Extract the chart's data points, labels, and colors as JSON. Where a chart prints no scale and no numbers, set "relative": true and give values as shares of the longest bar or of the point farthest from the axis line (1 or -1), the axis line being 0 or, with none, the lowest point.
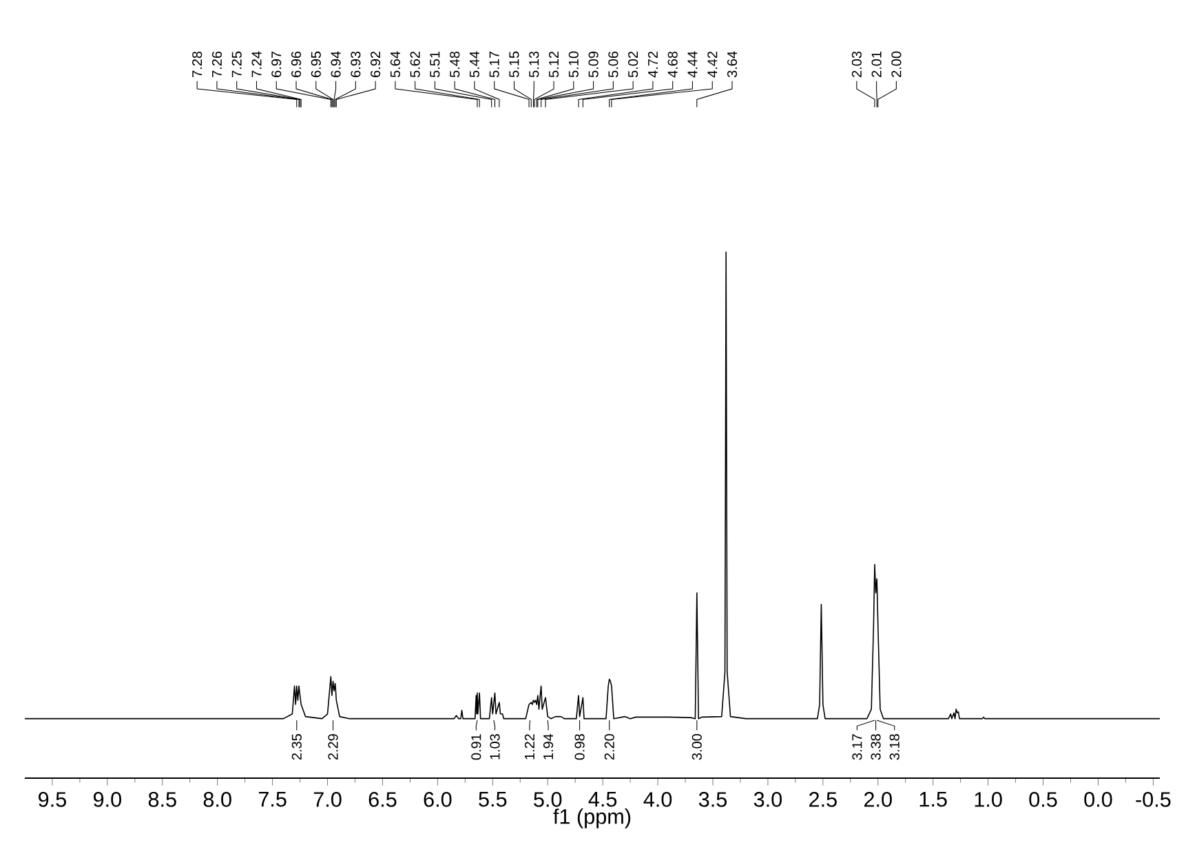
{
  "chart_data": {
    "type": "line",
    "relative": true,
    "color": "#000000",
    "xlabel": "f1 (ppm)",
    "xlim": [
      9.75,
      -0.56
    ],
    "xticks": [
      9.5,
      {
        "value": 9.0,
        "label": "9.0"
      },
      8.5,
      {
        "value": 8.0,
        "label": "8.0"
      },
      7.5,
      {
        "value": 7.0,
        "label": "7.0"
      },
      6.5,
      {
        "value": 6.0,
        "label": "6.0"
      },
      5.5,
      {
        "value": 5.0,
        "label": "5.0"
      },
      4.5,
      {
        "value": 4.0,
        "label": "4.0"
      },
      3.5,
      {
        "value": 3.0,
        "label": "3.0"
      },
      2.5,
      {
        "value": 2.0,
        "label": "2.0"
      },
      1.5,
      {
        "value": 1.0,
        "label": "1.0"
      },
      0.5,
      {
        "value": 0.0,
        "label": "0.0"
      },
      -0.5
    ],
    "x": [
      9.75,
      7.4,
      7.32,
      7.3,
      7.29,
      7.28,
      7.27,
      7.26,
      7.25,
      7.24,
      7.2,
      7.05,
      7.0,
      6.97,
      6.96,
      6.95,
      6.94,
      6.93,
      6.92,
      6.89,
      6.8,
      5.85,
      5.83,
      5.81,
      5.79,
      5.78,
      5.77,
      5.66,
      5.65,
      5.645,
      5.64,
      5.635,
      5.62,
      5.61,
      5.53,
      5.51,
      5.5,
      5.48,
      5.47,
      5.44,
      5.43,
      5.41,
      5.4,
      5.2,
      5.17,
      5.15,
      5.14,
      5.13,
      5.12,
      5.11,
      5.1,
      5.09,
      5.08,
      5.06,
      5.05,
      5.02,
      5.0,
      4.97,
      4.93,
      4.88,
      4.85,
      4.74,
      4.72,
      4.71,
      4.68,
      4.67,
      4.47,
      4.45,
      4.44,
      4.43,
      4.42,
      4.4,
      4.3,
      4.25,
      4.2,
      3.9,
      3.7,
      3.66,
      3.645,
      3.63,
      3.6,
      3.42,
      3.39,
      3.38,
      3.37,
      3.34,
      3.2,
      2.55,
      2.53,
      2.515,
      2.5,
      2.48,
      2.1,
      2.06,
      2.04,
      2.03,
      2.02,
      2.01,
      2.0,
      1.98,
      1.95,
      1.36,
      1.34,
      1.33,
      1.31,
      1.3,
      1.29,
      1.28,
      1.27,
      1.26,
      1.05,
      1.04,
      1.03,
      -0.56
    ],
    "values": [
      0.113,
      0.113,
      0.122,
      0.175,
      0.14,
      0.175,
      0.148,
      0.175,
      0.157,
      0.14,
      0.117,
      0.113,
      0.122,
      0.193,
      0.157,
      0.184,
      0.166,
      0.18,
      0.148,
      0.117,
      0.113,
      0.113,
      0.119,
      0.113,
      0.113,
      0.129,
      0.113,
      0.113,
      0.157,
      0.122,
      0.162,
      0.122,
      0.162,
      0.113,
      0.113,
      0.153,
      0.122,
      0.162,
      0.122,
      0.144,
      0.122,
      0.122,
      0.113,
      0.113,
      0.14,
      0.144,
      0.14,
      0.148,
      0.144,
      0.148,
      0.14,
      0.157,
      0.131,
      0.175,
      0.131,
      0.153,
      0.117,
      0.113,
      0.117,
      0.117,
      0.113,
      0.113,
      0.157,
      0.117,
      0.153,
      0.113,
      0.113,
      0.175,
      0.188,
      0.184,
      0.175,
      0.113,
      0.117,
      0.113,
      0.116,
      0.116,
      0.115,
      0.113,
      0.352,
      0.113,
      0.116,
      0.117,
      0.202,
      1,
      0.202,
      0.117,
      0.113,
      0.113,
      0.14,
      0.33,
      0.14,
      0.113,
      0.113,
      0.131,
      0.29,
      0.406,
      0.352,
      0.379,
      0.29,
      0.131,
      0.113,
      0.113,
      0.122,
      0.113,
      0.124,
      0.113,
      0.131,
      0.124,
      0.126,
      0.113,
      0.113,
      0.116,
      0.113,
      0.113
    ],
    "annotations": [
      {
        "text": "7.28",
        "x": 7.28
      },
      {
        "text": "7.26",
        "x": 7.26
      },
      {
        "text": "7.25",
        "x": 7.25
      },
      {
        "text": "7.24",
        "x": 7.24
      },
      {
        "text": "6.97",
        "x": 6.97
      },
      {
        "text": "6.96",
        "x": 6.96
      },
      {
        "text": "6.95",
        "x": 6.95
      },
      {
        "text": "6.94",
        "x": 6.94
      },
      {
        "text": "6.93",
        "x": 6.93
      },
      {
        "text": "6.92",
        "x": 6.92
      },
      {
        "text": "5.64",
        "x": 5.64
      },
      {
        "text": "5.62",
        "x": 5.62
      },
      {
        "text": "5.51",
        "x": 5.51
      },
      {
        "text": "5.48",
        "x": 5.48
      },
      {
        "text": "5.44",
        "x": 5.44
      },
      {
        "text": "5.17",
        "x": 5.17
      },
      {
        "text": "5.15",
        "x": 5.15
      },
      {
        "text": "5.13",
        "x": 5.13
      },
      {
        "text": "5.12",
        "x": 5.12
      },
      {
        "text": "5.10",
        "x": 5.1
      },
      {
        "text": "5.09",
        "x": 5.09
      },
      {
        "text": "5.06",
        "x": 5.06
      },
      {
        "text": "5.02",
        "x": 5.02
      },
      {
        "text": "4.72",
        "x": 4.72
      },
      {
        "text": "4.68",
        "x": 4.68
      },
      {
        "text": "4.44",
        "x": 4.44
      },
      {
        "text": "4.42",
        "x": 4.42
      },
      {
        "text": "3.64",
        "x": 3.645
      },
      {
        "text": "2.03",
        "x": 2.03
      },
      {
        "text": "2.01",
        "x": 2.01
      },
      {
        "text": "2.00",
        "x": 2.0
      },
      {
        "text": "2.35",
        "x": 7.28,
        "y": 0.113
      },
      {
        "text": "2.29",
        "x": 6.95,
        "y": 0.113
      },
      {
        "text": "0.91",
        "x": 5.64,
        "y": 0.113
      },
      {
        "text": "1.03",
        "x": 5.49,
        "y": 0.113
      },
      {
        "text": "1.22",
        "x": 5.16,
        "y": 0.113
      },
      {
        "text": "1.94",
        "x": 5.0,
        "y": 0.113
      },
      {
        "text": "0.98",
        "x": 4.71,
        "y": 0.113
      },
      {
        "text": "2.20",
        "x": 4.44,
        "y": 0.113
      },
      {
        "text": "3.00",
        "x": 3.645,
        "y": 0.113
      },
      {
        "text": "3.17",
        "x": 2.03,
        "y": 0.113
      },
      {
        "text": "3.38",
        "x": 2.02,
        "y": 0.113
      },
      {
        "text": "3.18",
        "x": 2.01,
        "y": 0.113
      }
    ]
  }
}
